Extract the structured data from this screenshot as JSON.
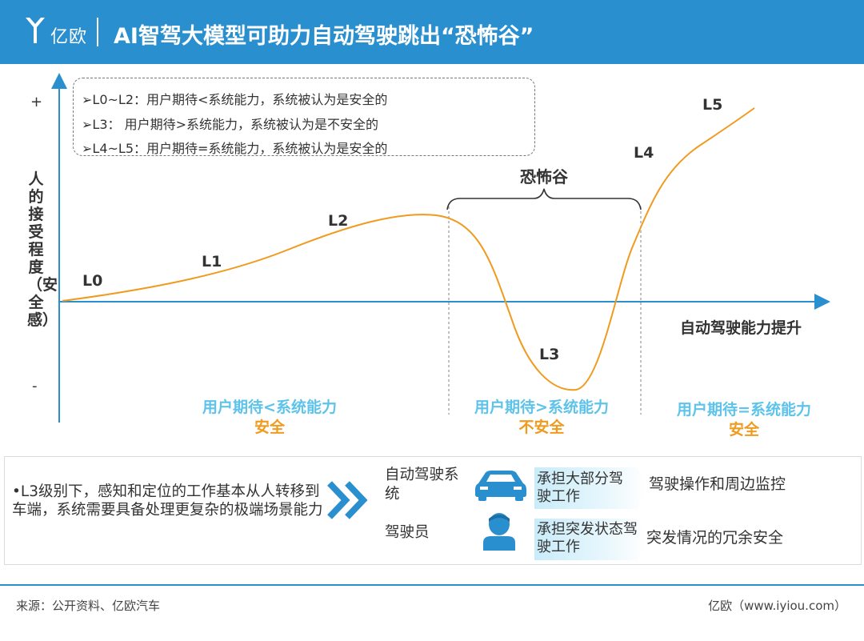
{
  "header": {
    "logo_text": "亿欧",
    "title": "AI智驾大模型可助力自动驾驶跳出“恐怖谷”"
  },
  "notes": [
    "➢L0~L2：用户期待<系统能力，系统被认为是安全的",
    "➢L3： 用户期待>系统能力，系统被认为是不安全的",
    "➢L4~L5：用户期待=系统能力，系统被认为是安全的"
  ],
  "axes": {
    "plus": "+",
    "minus": "-",
    "y_label": "人的接受程度（安全感）",
    "x_label": "自动驾驶能力提升"
  },
  "levels": [
    "L0",
    "L1",
    "L2",
    "L3",
    "L4",
    "L5"
  ],
  "valley_label": "恐怖谷",
  "zones": [
    {
      "expectation": "用户期待<系统能力",
      "safety": "安全"
    },
    {
      "expectation": "用户期待>系统能力",
      "safety": "不安全"
    },
    {
      "expectation": "用户期待=系统能力",
      "safety": "安全"
    }
  ],
  "bottom": {
    "bullet": "•L3级别下，感知和定位的工作基本从人转移到车端，系统需要具备处理更复杂的极端场景能力",
    "rows": [
      {
        "role": "自动驾驶系统",
        "icon": "car-icon",
        "band": "承担大部分驾驶工作",
        "duty": "驾驶操作和周边监控"
      },
      {
        "role": "驾驶员",
        "icon": "driver-icon",
        "band": "承担突发状态驾驶工作",
        "duty": "突发情况的冗余安全"
      }
    ]
  },
  "footer": {
    "source": "来源：公开资料、亿欧汽车",
    "credit": "亿欧（www.iyiou.com）"
  },
  "colors": {
    "header": "#2a8fce",
    "curve": "#f09a1e",
    "axis": "#2a8fce",
    "expectation_text": "#5ec3ea",
    "safety_text": "#f09a1e"
  }
}
